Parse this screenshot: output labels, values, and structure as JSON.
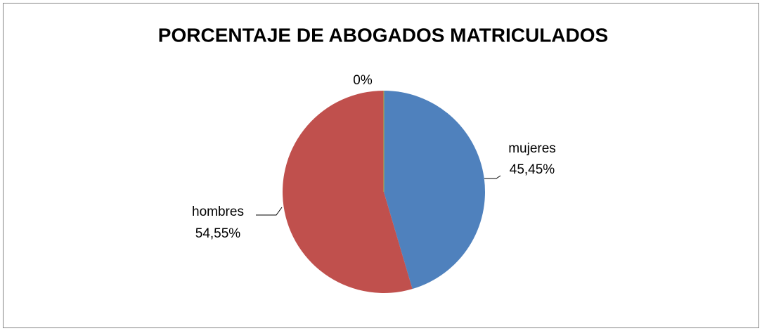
{
  "chart_data": {
    "type": "pie",
    "title": "PORCENTAJE DE ABOGADOS MATRICULADOS",
    "categories": [
      "mujeres",
      "hombres",
      null
    ],
    "values": [
      45.45,
      54.55,
      0
    ],
    "value_labels": [
      "45,45%",
      "54,55%",
      "0%"
    ],
    "colors": [
      "#4f81bd",
      "#c0504d",
      "#9bbb59"
    ]
  }
}
